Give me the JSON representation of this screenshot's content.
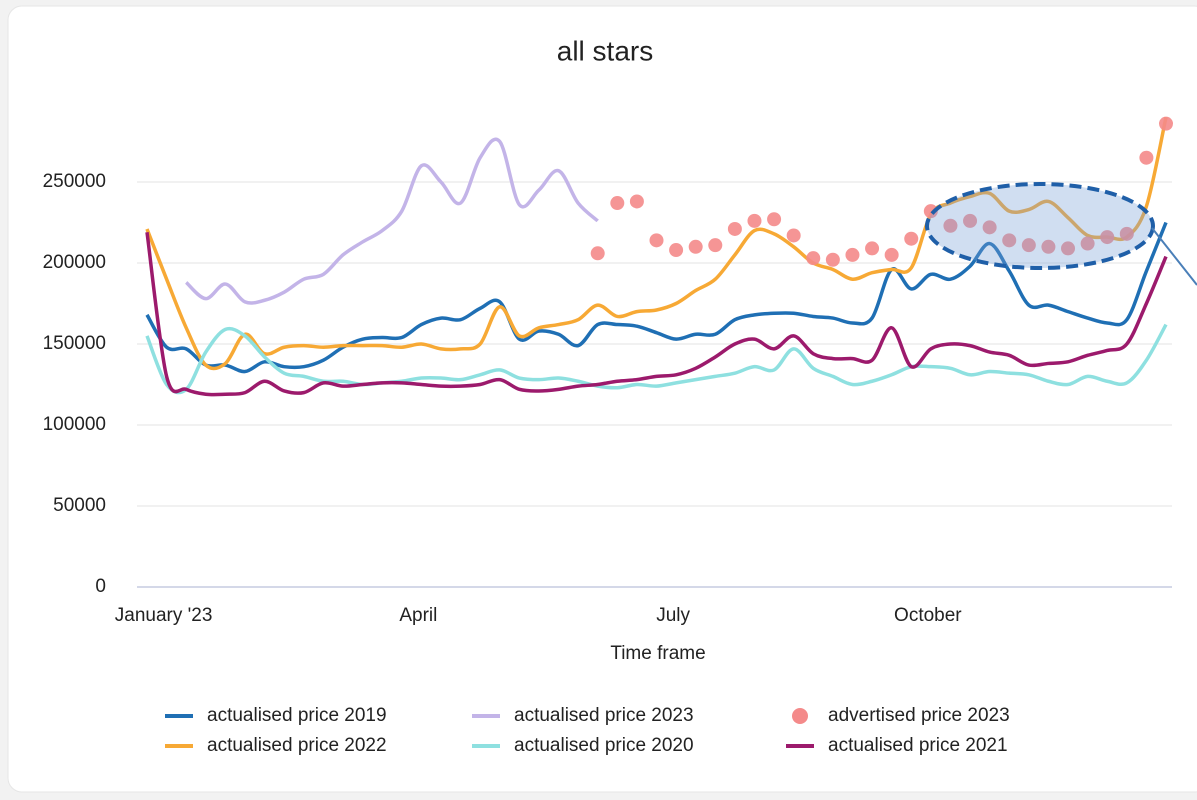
{
  "chart_data": {
    "type": "line",
    "title": "all stars",
    "x_label": "Time frame",
    "categories": [
      null,
      "January '23",
      null,
      null,
      null,
      null,
      null,
      null,
      null,
      null,
      null,
      null,
      null,
      null,
      "April",
      null,
      null,
      null,
      null,
      null,
      null,
      null,
      null,
      null,
      null,
      null,
      null,
      "July",
      null,
      null,
      null,
      null,
      null,
      null,
      null,
      null,
      null,
      null,
      null,
      null,
      "October",
      null,
      null,
      null,
      null,
      null,
      null,
      null,
      null,
      null,
      null,
      null,
      null
    ],
    "ylim": [
      0,
      300000
    ],
    "yticks": [
      0,
      50000,
      100000,
      150000,
      200000,
      250000
    ],
    "grid": true,
    "series": [
      {
        "name": "actualised price 2019",
        "type": "line",
        "color": "#1f6fb4",
        "values": [
          168000,
          148000,
          147000,
          137000,
          137000,
          133000,
          139000,
          136000,
          136000,
          140000,
          148000,
          153000,
          154000,
          154000,
          162000,
          166000,
          165000,
          172000,
          176000,
          153000,
          158000,
          156000,
          149000,
          162000,
          162000,
          161000,
          157000,
          153000,
          156000,
          156000,
          165000,
          168000,
          169000,
          169000,
          167000,
          166000,
          163000,
          166000,
          196000,
          184000,
          193000,
          190000,
          198000,
          212000,
          195000,
          174000,
          174000,
          170000,
          166000,
          163000,
          165000,
          195000,
          225000
        ]
      },
      {
        "name": "actualised price 2023",
        "type": "line",
        "color": "#c3b4e8",
        "values": [
          null,
          null,
          188000,
          178000,
          187000,
          176000,
          177000,
          182000,
          190000,
          193000,
          205000,
          213000,
          220000,
          232000,
          260000,
          250000,
          237000,
          265000,
          275000,
          236000,
          245000,
          257000,
          237000,
          226000,
          null,
          null,
          null,
          null,
          null,
          null,
          null,
          null,
          null,
          null,
          null,
          null,
          null,
          null,
          null,
          null,
          null,
          null,
          null,
          null,
          null,
          null,
          null,
          null,
          null,
          null,
          null,
          null,
          null
        ]
      },
      {
        "name": "advertised price 2023",
        "type": "scatter",
        "color": "#f48a8a",
        "values": [
          null,
          null,
          null,
          null,
          null,
          null,
          null,
          null,
          null,
          null,
          null,
          null,
          null,
          null,
          null,
          null,
          null,
          null,
          null,
          null,
          null,
          null,
          null,
          206000,
          237000,
          238000,
          214000,
          208000,
          210000,
          211000,
          221000,
          226000,
          227000,
          217000,
          203000,
          202000,
          205000,
          209000,
          205000,
          215000,
          232000,
          223000,
          226000,
          222000,
          214000,
          211000,
          210000,
          209000,
          212000,
          216000,
          218000,
          265000,
          286000
        ]
      },
      {
        "name": "actualised price 2022",
        "type": "line",
        "color": "#f7a935",
        "values": [
          221000,
          190000,
          160000,
          137000,
          138000,
          156000,
          144000,
          148000,
          149000,
          148000,
          149000,
          149000,
          149000,
          148000,
          150000,
          147000,
          147000,
          150000,
          173000,
          155000,
          160000,
          162000,
          165000,
          174000,
          167000,
          170000,
          171000,
          175000,
          183000,
          190000,
          205000,
          220000,
          218000,
          210000,
          200000,
          196000,
          190000,
          194000,
          196000,
          197000,
          230000,
          237000,
          241000,
          243000,
          232000,
          233000,
          238000,
          228000,
          217000,
          216000,
          216000,
          235000,
          290000
        ]
      },
      {
        "name": "actualised price 2020",
        "type": "line",
        "color": "#8ee0e0",
        "values": [
          155000,
          125000,
          122000,
          145000,
          159000,
          155000,
          142000,
          132000,
          130000,
          127000,
          127000,
          125000,
          126000,
          127000,
          129000,
          129000,
          128000,
          131000,
          134000,
          129000,
          128000,
          129000,
          127000,
          124000,
          123000,
          125000,
          124000,
          126000,
          128000,
          130000,
          132000,
          136000,
          134000,
          147000,
          135000,
          130000,
          125000,
          127000,
          131000,
          136000,
          136000,
          135000,
          131000,
          133000,
          132000,
          131000,
          127000,
          125000,
          130000,
          127000,
          126000,
          140000,
          162000
        ]
      },
      {
        "name": "actualised price 2021",
        "type": "line",
        "color": "#9c1a6c",
        "values": [
          219000,
          130000,
          122000,
          119000,
          119000,
          120000,
          127000,
          121000,
          120000,
          126000,
          124000,
          125000,
          126000,
          126000,
          125000,
          124000,
          124000,
          125000,
          128000,
          122000,
          121000,
          122000,
          124000,
          125000,
          127000,
          128000,
          130000,
          131000,
          135000,
          142000,
          150000,
          153000,
          147000,
          155000,
          144000,
          141000,
          141000,
          140000,
          160000,
          136000,
          147000,
          150000,
          149000,
          145000,
          143000,
          137000,
          138000,
          139000,
          143000,
          146000,
          150000,
          175000,
          204000
        ]
      }
    ]
  }
}
